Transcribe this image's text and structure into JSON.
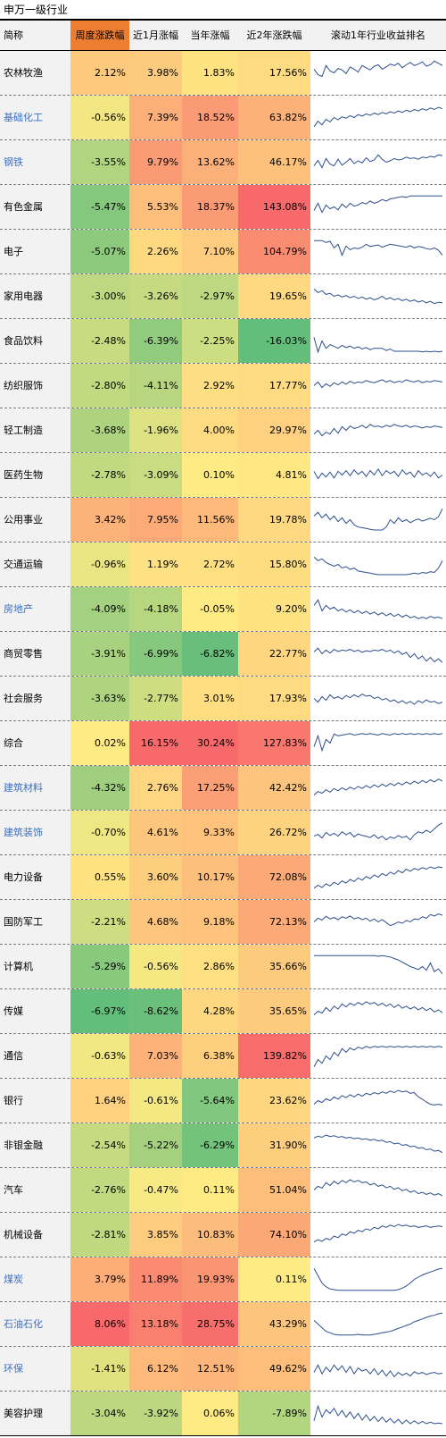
{
  "caption": "申万一级行业",
  "columns": [
    "简称",
    "周度涨跌幅",
    "近1月涨幅",
    "当年涨幅",
    "近2年涨跌幅",
    "滚动1年行业收益排名"
  ],
  "colors": {
    "header_accent": "#ed7d31",
    "link_text": "#3b6fc0",
    "sparkline": "#2f4f8f",
    "name_bg": "#f2f2f2"
  },
  "rows": [
    {
      "name": "农林牧渔",
      "link": false,
      "weekly": "2.12%",
      "m1": "3.98%",
      "ytd": "1.83%",
      "y2": "17.56%",
      "spark": [
        60,
        45,
        40,
        70,
        55,
        50,
        62,
        58,
        48,
        66,
        60,
        52,
        70,
        64,
        58,
        68,
        72,
        60,
        66,
        74,
        70,
        76,
        64,
        72,
        78,
        70,
        74,
        80,
        68,
        72,
        82,
        76,
        70
      ]
    },
    {
      "name": "基础化工",
      "link": true,
      "weekly": "-0.56%",
      "m1": "7.39%",
      "ytd": "18.52%",
      "y2": "63.82%",
      "spark": [
        25,
        40,
        30,
        45,
        38,
        50,
        44,
        52,
        48,
        55,
        50,
        58,
        54,
        60,
        56,
        62,
        58,
        64,
        60,
        66,
        62,
        68,
        64,
        70,
        66,
        72,
        68,
        74,
        70,
        76,
        72,
        78,
        74
      ]
    },
    {
      "name": "钢铁",
      "link": true,
      "weekly": "-3.55%",
      "m1": "9.79%",
      "ytd": "13.62%",
      "y2": "46.17%",
      "spark": [
        40,
        55,
        35,
        60,
        45,
        40,
        58,
        42,
        50,
        60,
        46,
        54,
        48,
        62,
        52,
        56,
        70,
        58,
        50,
        54,
        60,
        56,
        58,
        64,
        60,
        62,
        58,
        64,
        62,
        66,
        64,
        70,
        68
      ]
    },
    {
      "name": "有色金属",
      "link": false,
      "weekly": "-5.47%",
      "m1": "5.53%",
      "ytd": "18.37%",
      "y2": "143.08%",
      "spark": [
        40,
        60,
        35,
        55,
        45,
        50,
        42,
        58,
        48,
        60,
        52,
        55,
        62,
        58,
        66,
        60,
        64,
        70,
        66,
        72,
        74,
        76,
        78,
        76,
        80,
        80,
        80,
        80,
        80,
        80,
        80,
        80,
        80
      ]
    },
    {
      "name": "电子",
      "link": false,
      "weekly": "-5.07%",
      "m1": "2.26%",
      "ytd": "7.10%",
      "y2": "104.79%",
      "spark": [
        80,
        80,
        80,
        75,
        78,
        60,
        70,
        40,
        65,
        55,
        60,
        58,
        62,
        70,
        64,
        66,
        68,
        62,
        66,
        70,
        68,
        66,
        64,
        62,
        66,
        60,
        64,
        62,
        58,
        56,
        60,
        54,
        40
      ]
    },
    {
      "name": "家用电器",
      "link": false,
      "weekly": "-3.00%",
      "m1": "-3.26%",
      "ytd": "-2.97%",
      "y2": "19.65%",
      "spark": [
        70,
        60,
        65,
        55,
        58,
        50,
        54,
        48,
        52,
        46,
        50,
        44,
        48,
        42,
        46,
        40,
        44,
        50,
        42,
        46,
        40,
        44,
        38,
        42,
        36,
        40,
        34,
        38,
        32,
        36,
        30,
        34,
        32
      ]
    },
    {
      "name": "食品饮料",
      "link": false,
      "weekly": "-2.48%",
      "m1": "-6.39%",
      "ytd": "-2.25%",
      "y2": "-16.03%",
      "spark": [
        60,
        20,
        50,
        30,
        40,
        35,
        30,
        38,
        32,
        36,
        30,
        34,
        28,
        32,
        26,
        30,
        30,
        30,
        24,
        28,
        22,
        22,
        22,
        22,
        22,
        22,
        22,
        20,
        22,
        20,
        22,
        20,
        22
      ]
    },
    {
      "name": "纺织服饰",
      "link": false,
      "weekly": "-2.80%",
      "m1": "-4.11%",
      "ytd": "2.92%",
      "y2": "17.77%",
      "spark": [
        50,
        60,
        45,
        55,
        48,
        58,
        52,
        60,
        54,
        62,
        56,
        60,
        58,
        64,
        60,
        58,
        62,
        66,
        60,
        64,
        58,
        62,
        60,
        66,
        62,
        60,
        64,
        58,
        62,
        60,
        64,
        62,
        60
      ]
    },
    {
      "name": "轻工制造",
      "link": false,
      "weekly": "-3.68%",
      "m1": "-1.96%",
      "ytd": "4.00%",
      "y2": "29.97%",
      "spark": [
        40,
        50,
        35,
        45,
        40,
        55,
        42,
        60,
        50,
        62,
        55,
        58,
        64,
        56,
        66,
        60,
        62,
        58,
        64,
        60,
        66,
        62,
        60,
        64,
        58,
        62,
        60,
        56,
        60,
        58,
        62,
        60,
        58
      ]
    },
    {
      "name": "医药生物",
      "link": false,
      "weekly": "-2.78%",
      "m1": "-3.09%",
      "ytd": "0.10%",
      "y2": "4.81%",
      "spark": [
        60,
        40,
        55,
        45,
        58,
        42,
        60,
        50,
        62,
        48,
        64,
        52,
        60,
        46,
        62,
        50,
        66,
        48,
        62,
        54,
        60,
        46,
        64,
        52,
        58,
        44,
        62,
        50,
        56,
        46,
        58,
        42,
        50
      ]
    },
    {
      "name": "公用事业",
      "link": false,
      "weekly": "3.42%",
      "m1": "7.95%",
      "ytd": "11.56%",
      "y2": "19.78%",
      "spark": [
        60,
        70,
        55,
        65,
        50,
        60,
        45,
        55,
        40,
        50,
        36,
        30,
        28,
        26,
        24,
        22,
        22,
        22,
        30,
        50,
        40,
        55,
        45,
        50,
        42,
        48,
        52,
        46,
        50,
        54,
        50,
        58,
        80
      ]
    },
    {
      "name": "交通运输",
      "link": false,
      "weekly": "-0.96%",
      "m1": "1.19%",
      "ytd": "2.72%",
      "y2": "15.80%",
      "spark": [
        70,
        60,
        65,
        55,
        50,
        45,
        50,
        40,
        44,
        36,
        40,
        32,
        30,
        28,
        26,
        24,
        22,
        22,
        22,
        22,
        22,
        22,
        22,
        22,
        24,
        26,
        24,
        28,
        26,
        30,
        28,
        40,
        60
      ]
    },
    {
      "name": "房地产",
      "link": true,
      "weekly": "-4.09%",
      "m1": "-4.18%",
      "ytd": "-0.05%",
      "y2": "9.20%",
      "spark": [
        60,
        75,
        45,
        60,
        50,
        55,
        45,
        50,
        42,
        48,
        40,
        46,
        38,
        44,
        36,
        42,
        34,
        40,
        32,
        38,
        30,
        36,
        28,
        34,
        26,
        30,
        24,
        28,
        24,
        30,
        26,
        28,
        24
      ]
    },
    {
      "name": "商贸零售",
      "link": false,
      "weekly": "-3.91%",
      "m1": "-6.99%",
      "ytd": "-6.82%",
      "y2": "22.77%",
      "spark": [
        55,
        65,
        50,
        60,
        52,
        62,
        56,
        60,
        58,
        62,
        56,
        60,
        54,
        58,
        56,
        60,
        58,
        62,
        56,
        60,
        52,
        58,
        48,
        54,
        40,
        50,
        36,
        44,
        30,
        40,
        28,
        36,
        26
      ]
    },
    {
      "name": "社会服务",
      "link": false,
      "weekly": "-3.63%",
      "m1": "-2.77%",
      "ytd": "3.01%",
      "y2": "17.93%",
      "spark": [
        50,
        40,
        55,
        45,
        60,
        50,
        55,
        48,
        58,
        52,
        60,
        54,
        62,
        56,
        58,
        50,
        54,
        46,
        50,
        42,
        46,
        38,
        44,
        36,
        42,
        34,
        44,
        38,
        46,
        40,
        42,
        36,
        40
      ]
    },
    {
      "name": "综合",
      "link": false,
      "weekly": "0.02%",
      "m1": "16.15%",
      "ytd": "30.24%",
      "y2": "127.83%",
      "spark": [
        40,
        70,
        30,
        60,
        50,
        75,
        70,
        72,
        74,
        76,
        72,
        74,
        76,
        74,
        76,
        74,
        72,
        76,
        74,
        72,
        76,
        74,
        76,
        74,
        76,
        74,
        76,
        74,
        76,
        74,
        76,
        74,
        76
      ]
    },
    {
      "name": "建筑材料",
      "link": true,
      "weekly": "-4.32%",
      "m1": "2.76%",
      "ytd": "17.25%",
      "y2": "42.42%",
      "spark": [
        30,
        40,
        35,
        45,
        38,
        48,
        42,
        50,
        44,
        52,
        46,
        54,
        48,
        56,
        50,
        58,
        52,
        60,
        54,
        62,
        56,
        64,
        58,
        66,
        60,
        68,
        62,
        70,
        64,
        72,
        66,
        74,
        68
      ]
    },
    {
      "name": "建筑装饰",
      "link": true,
      "weekly": "-0.70%",
      "m1": "4.61%",
      "ytd": "9.33%",
      "y2": "26.72%",
      "spark": [
        40,
        45,
        35,
        50,
        42,
        48,
        40,
        52,
        44,
        50,
        38,
        46,
        42,
        40,
        36,
        44,
        34,
        40,
        30,
        38,
        34,
        42,
        36,
        40,
        30,
        44,
        52,
        48,
        56,
        50,
        60,
        70,
        76
      ]
    },
    {
      "name": "电力设备",
      "link": false,
      "weekly": "0.55%",
      "m1": "3.60%",
      "ytd": "10.17%",
      "y2": "72.08%",
      "spark": [
        20,
        28,
        22,
        32,
        26,
        36,
        30,
        40,
        34,
        44,
        38,
        48,
        42,
        52,
        46,
        56,
        50,
        60,
        54,
        64,
        58,
        68,
        62,
        72,
        66,
        74,
        70,
        76,
        72,
        78,
        74,
        78,
        76
      ]
    },
    {
      "name": "国防军工",
      "link": false,
      "weekly": "-2.21%",
      "m1": "4.68%",
      "ytd": "9.18%",
      "y2": "72.13%",
      "spark": [
        50,
        60,
        55,
        65,
        58,
        62,
        56,
        64,
        60,
        66,
        58,
        62,
        56,
        60,
        52,
        58,
        50,
        56,
        48,
        40,
        44,
        50,
        46,
        54,
        50,
        58,
        56,
        64,
        60,
        70,
        66,
        72,
        68
      ]
    },
    {
      "name": "计算机",
      "link": false,
      "weekly": "-5.29%",
      "m1": "-0.56%",
      "ytd": "2.86%",
      "y2": "35.66%",
      "spark": [
        80,
        80,
        80,
        80,
        80,
        80,
        80,
        80,
        80,
        80,
        80,
        80,
        80,
        80,
        80,
        80,
        78,
        80,
        78,
        76,
        72,
        68,
        62,
        56,
        50,
        46,
        42,
        50,
        40,
        60,
        36,
        44,
        30
      ]
    },
    {
      "name": "传媒",
      "link": false,
      "weekly": "-6.97%",
      "m1": "-8.62%",
      "ytd": "4.28%",
      "y2": "35.65%",
      "spark": [
        40,
        50,
        45,
        60,
        50,
        64,
        56,
        70,
        62,
        72,
        66,
        74,
        68,
        76,
        70,
        74,
        66,
        72,
        64,
        70,
        60,
        68,
        58,
        64,
        56,
        62,
        54,
        60,
        52,
        58,
        48,
        54,
        46
      ]
    },
    {
      "name": "通信",
      "link": false,
      "weekly": "-0.63%",
      "m1": "7.03%",
      "ytd": "6.38%",
      "y2": "139.82%",
      "spark": [
        20,
        40,
        30,
        50,
        40,
        60,
        50,
        70,
        60,
        72,
        66,
        74,
        70,
        76,
        72,
        76,
        74,
        76,
        74,
        76,
        74,
        76,
        74,
        76,
        74,
        76,
        74,
        76,
        74,
        76,
        74,
        76,
        74
      ]
    },
    {
      "name": "银行",
      "link": false,
      "weekly": "1.64%",
      "m1": "-0.61%",
      "ytd": "-5.64%",
      "y2": "23.62%",
      "spark": [
        40,
        50,
        45,
        55,
        50,
        60,
        54,
        64,
        58,
        66,
        60,
        68,
        62,
        70,
        66,
        72,
        68,
        74,
        70,
        76,
        72,
        78,
        74,
        76,
        70,
        72,
        60,
        54,
        46,
        40,
        38,
        40,
        38
      ]
    },
    {
      "name": "非银金融",
      "link": false,
      "weekly": "-2.54%",
      "m1": "-5.22%",
      "ytd": "-6.29%",
      "y2": "31.90%",
      "spark": [
        70,
        75,
        72,
        78,
        74,
        76,
        72,
        74,
        70,
        72,
        68,
        70,
        66,
        68,
        64,
        66,
        62,
        64,
        58,
        60,
        54,
        56,
        50,
        52,
        46,
        48,
        42,
        44,
        38,
        40,
        34,
        36,
        30
      ]
    },
    {
      "name": "汽车",
      "link": false,
      "weekly": "-2.76%",
      "m1": "-0.47%",
      "ytd": "0.11%",
      "y2": "51.04%",
      "spark": [
        50,
        60,
        55,
        70,
        62,
        74,
        66,
        76,
        70,
        78,
        72,
        76,
        70,
        72,
        64,
        68,
        60,
        64,
        56,
        60,
        52,
        56,
        48,
        52,
        44,
        48,
        40,
        44,
        38,
        42,
        36,
        40,
        34
      ]
    },
    {
      "name": "机械设备",
      "link": false,
      "weekly": "-2.81%",
      "m1": "3.85%",
      "ytd": "10.83%",
      "y2": "74.10%",
      "spark": [
        30,
        36,
        32,
        40,
        36,
        46,
        42,
        52,
        48,
        58,
        54,
        62,
        58,
        66,
        62,
        70,
        66,
        74,
        70,
        76,
        72,
        78,
        74,
        76,
        72,
        74,
        70,
        72,
        74,
        70,
        72,
        74,
        72
      ]
    },
    {
      "name": "煤炭",
      "link": true,
      "weekly": "3.79%",
      "m1": "11.89%",
      "ytd": "19.93%",
      "y2": "0.11%",
      "spark": [
        80,
        60,
        40,
        30,
        24,
        22,
        20,
        20,
        20,
        20,
        20,
        20,
        20,
        20,
        20,
        20,
        20,
        20,
        20,
        20,
        20,
        22,
        26,
        32,
        40,
        50,
        56,
        62,
        66,
        70,
        74,
        78,
        80
      ]
    },
    {
      "name": "石油石化",
      "link": true,
      "weekly": "8.06%",
      "m1": "13.18%",
      "ytd": "28.75%",
      "y2": "43.29%",
      "spark": [
        60,
        50,
        40,
        30,
        26,
        22,
        20,
        20,
        20,
        20,
        20,
        22,
        20,
        20,
        20,
        22,
        24,
        26,
        28,
        30,
        34,
        38,
        42,
        46,
        50,
        56,
        60,
        64,
        68,
        72,
        74,
        78,
        80
      ]
    },
    {
      "name": "环保",
      "link": true,
      "weekly": "-1.41%",
      "m1": "6.12%",
      "ytd": "12.51%",
      "y2": "49.62%",
      "spark": [
        40,
        60,
        36,
        54,
        42,
        60,
        46,
        58,
        40,
        56,
        36,
        52,
        44,
        48,
        36,
        50,
        34,
        46,
        30,
        44,
        28,
        40,
        32,
        38,
        30,
        42,
        36,
        40,
        34,
        38,
        40,
        36,
        38
      ]
    },
    {
      "name": "美容护理",
      "link": false,
      "weekly": "-3.04%",
      "m1": "-3.92%",
      "ytd": "0.06%",
      "y2": "-7.89%",
      "spark": [
        30,
        70,
        40,
        60,
        50,
        64,
        44,
        58,
        40,
        54,
        36,
        50,
        32,
        46,
        30,
        42,
        28,
        40,
        26,
        36,
        24,
        34,
        22,
        32,
        22,
        30,
        22,
        28,
        22,
        26,
        22,
        24,
        22
      ]
    }
  ]
}
